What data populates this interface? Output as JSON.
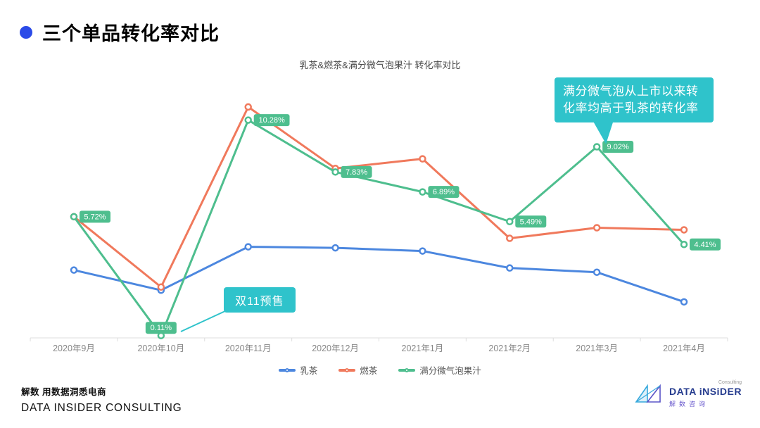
{
  "header": {
    "title": "三个单品转化率对比"
  },
  "chart_data": {
    "type": "line",
    "title": "乳茶&燃茶&满分微气泡果汁 转化率对比",
    "categories": [
      "2020年9月",
      "2020年10月",
      "2020年11月",
      "2020年12月",
      "2021年1月",
      "2021年2月",
      "2021年3月",
      "2021年4月"
    ],
    "unit": "%",
    "ylim": [
      0,
      12
    ],
    "grid": false,
    "legend_position": "bottom",
    "series": [
      {
        "name": "乳茶",
        "color": "#4C87DF",
        "values": [
          3.2,
          2.25,
          4.3,
          4.25,
          4.1,
          3.3,
          3.1,
          1.7
        ]
      },
      {
        "name": "燃茶",
        "color": "#F0795C",
        "values": [
          5.72,
          2.4,
          10.9,
          8.0,
          8.45,
          4.7,
          5.2,
          5.1
        ]
      },
      {
        "name": "满分微气泡果汁",
        "color": "#4EBE8E",
        "values": [
          5.72,
          0.11,
          10.28,
          7.83,
          6.89,
          5.49,
          9.02,
          4.41
        ],
        "point_labels": [
          "5.72%",
          "0.11%",
          "10.28%",
          "7.83%",
          "6.89%",
          "5.49%",
          "9.02%",
          "4.41%"
        ]
      }
    ]
  },
  "annotations": {
    "highlight": {
      "text": "满分微气泡从上市以来转化率均高于乳茶的转化率",
      "target_value": "9.02%"
    },
    "presale": {
      "text": "双11预售"
    }
  },
  "colors": {
    "accent_teal": "#2FC3CB",
    "axis_line": "#DDDDDD",
    "axis_label": "#888888"
  },
  "footer": {
    "left_tagline": "解数 用数据洞悉电商",
    "left_brand": "DATA INSIDER CONSULTING",
    "logo_sub": "Consulting",
    "logo_brand": "DATA iNSiDER",
    "logo_cn": "解数咨询"
  }
}
